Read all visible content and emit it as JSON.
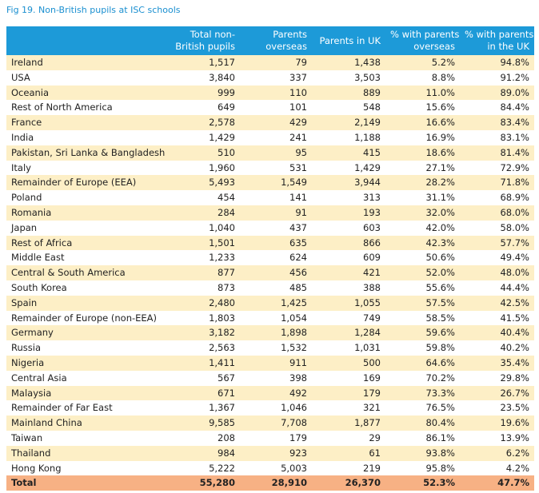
{
  "title": "Fig 19. Non-British pupils at ISC schools",
  "table": {
    "header": [
      [
        "Total non-",
        "British pupils"
      ],
      [
        "Parents",
        "overseas"
      ],
      [
        "Parents in UK"
      ],
      [
        "% with parents",
        "overseas"
      ],
      [
        "% with parents",
        "in the UK"
      ]
    ],
    "rows": [
      [
        "Ireland",
        "1,517",
        "79",
        "1,438",
        "5.2%",
        "94.8%"
      ],
      [
        "USA",
        "3,840",
        "337",
        "3,503",
        "8.8%",
        "91.2%"
      ],
      [
        "Oceania",
        "999",
        "110",
        "889",
        "11.0%",
        "89.0%"
      ],
      [
        "Rest of North America",
        "649",
        "101",
        "548",
        "15.6%",
        "84.4%"
      ],
      [
        "France",
        "2,578",
        "429",
        "2,149",
        "16.6%",
        "83.4%"
      ],
      [
        "India",
        "1,429",
        "241",
        "1,188",
        "16.9%",
        "83.1%"
      ],
      [
        "Pakistan, Sri Lanka & Bangladesh",
        "510",
        "95",
        "415",
        "18.6%",
        "81.4%"
      ],
      [
        "Italy",
        "1,960",
        "531",
        "1,429",
        "27.1%",
        "72.9%"
      ],
      [
        "Remainder of Europe (EEA)",
        "5,493",
        "1,549",
        "3,944",
        "28.2%",
        "71.8%"
      ],
      [
        "Poland",
        "454",
        "141",
        "313",
        "31.1%",
        "68.9%"
      ],
      [
        "Romania",
        "284",
        "91",
        "193",
        "32.0%",
        "68.0%"
      ],
      [
        "Japan",
        "1,040",
        "437",
        "603",
        "42.0%",
        "58.0%"
      ],
      [
        "Rest of Africa",
        "1,501",
        "635",
        "866",
        "42.3%",
        "57.7%"
      ],
      [
        "Middle East",
        "1,233",
        "624",
        "609",
        "50.6%",
        "49.4%"
      ],
      [
        "Central & South America",
        "877",
        "456",
        "421",
        "52.0%",
        "48.0%"
      ],
      [
        "South Korea",
        "873",
        "485",
        "388",
        "55.6%",
        "44.4%"
      ],
      [
        "Spain",
        "2,480",
        "1,425",
        "1,055",
        "57.5%",
        "42.5%"
      ],
      [
        "Remainder of Europe (non-EEA)",
        "1,803",
        "1,054",
        "749",
        "58.5%",
        "41.5%"
      ],
      [
        "Germany",
        "3,182",
        "1,898",
        "1,284",
        "59.6%",
        "40.4%"
      ],
      [
        "Russia",
        "2,563",
        "1,532",
        "1,031",
        "59.8%",
        "40.2%"
      ],
      [
        "Nigeria",
        "1,411",
        "911",
        "500",
        "64.6%",
        "35.4%"
      ],
      [
        "Central Asia",
        "567",
        "398",
        "169",
        "70.2%",
        "29.8%"
      ],
      [
        "Malaysia",
        "671",
        "492",
        "179",
        "73.3%",
        "26.7%"
      ],
      [
        "Remainder of Far East",
        "1,367",
        "1,046",
        "321",
        "76.5%",
        "23.5%"
      ],
      [
        "Mainland China",
        "9,585",
        "7,708",
        "1,877",
        "80.4%",
        "19.6%"
      ],
      [
        "Taiwan",
        "208",
        "179",
        "29",
        "86.1%",
        "13.9%"
      ],
      [
        "Thailand",
        "984",
        "923",
        "61",
        "93.8%",
        "6.2%"
      ],
      [
        "Hong Kong",
        "5,222",
        "5,003",
        "219",
        "95.8%",
        "4.2%"
      ]
    ],
    "total": [
      "Total",
      "55,280",
      "28,910",
      "26,370",
      "52.3%",
      "47.7%"
    ]
  }
}
